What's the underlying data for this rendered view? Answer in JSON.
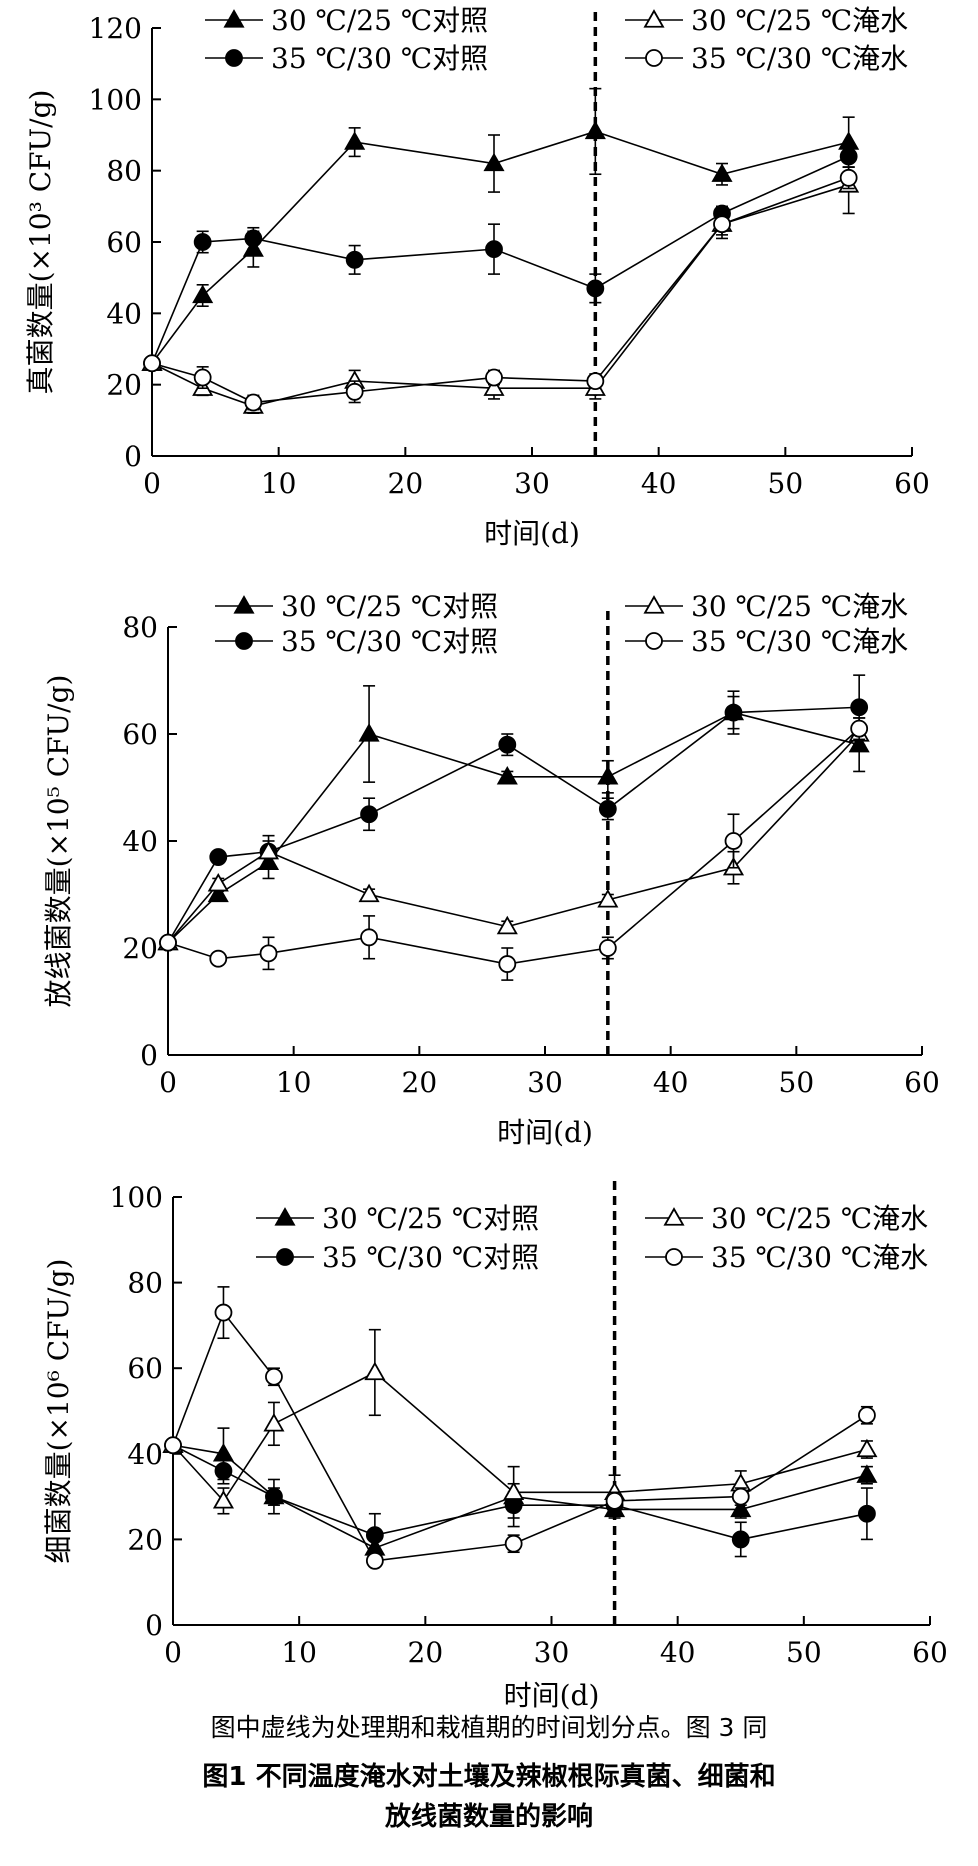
{
  "chart_data": [
    {
      "type": "line",
      "title": "",
      "xlabel": "时间(d)",
      "ylabel": "真菌数量(×10³ CFU/g)",
      "xlim": [
        0,
        60
      ],
      "ylim": [
        0,
        120
      ],
      "xticks": [
        0,
        10,
        20,
        30,
        40,
        50,
        60
      ],
      "yticks": [
        0,
        20,
        40,
        60,
        80,
        100,
        120
      ],
      "divider_x": 35,
      "x": [
        0,
        4,
        8,
        16,
        27,
        35,
        45,
        55
      ],
      "series": [
        {
          "name": "30 ℃/25 ℃对照",
          "marker": "triangle-filled",
          "values": [
            26,
            45,
            58,
            88,
            82,
            91,
            79,
            88
          ],
          "errors": [
            1,
            3,
            5,
            4,
            8,
            12,
            3,
            7
          ]
        },
        {
          "name": "35 ℃/30 ℃对照",
          "marker": "circle-filled",
          "values": [
            26,
            60,
            61,
            55,
            58,
            47,
            68,
            84
          ],
          "errors": [
            1,
            3,
            3,
            4,
            7,
            4,
            2,
            3
          ]
        },
        {
          "name": "30 ℃/25 ℃淹水",
          "marker": "triangle-open",
          "values": [
            26,
            19,
            14,
            21,
            19,
            19,
            65,
            76
          ],
          "errors": [
            1,
            2,
            2,
            3,
            3,
            3,
            4,
            8
          ]
        },
        {
          "name": "35 ℃/30 ℃淹水",
          "marker": "circle-open",
          "values": [
            26,
            22,
            15,
            18,
            22,
            21,
            65,
            78
          ],
          "errors": [
            1,
            3,
            2,
            3,
            2,
            2,
            3,
            3
          ]
        }
      ]
    },
    {
      "type": "line",
      "title": "",
      "xlabel": "时间(d)",
      "ylabel": "放线菌数量(×10⁵ CFU/g)",
      "xlim": [
        0,
        60
      ],
      "ylim": [
        0,
        80
      ],
      "xticks": [
        0,
        10,
        20,
        30,
        40,
        50,
        60
      ],
      "yticks": [
        0,
        20,
        40,
        60,
        80
      ],
      "divider_x": 35,
      "x": [
        0,
        4,
        8,
        16,
        27,
        35,
        45,
        55
      ],
      "series": [
        {
          "name": "30 ℃/25 ℃对照",
          "marker": "triangle-filled",
          "values": [
            21,
            30,
            36,
            60,
            52,
            52,
            64,
            58
          ],
          "errors": [
            1,
            1,
            3,
            9,
            1,
            3,
            3,
            5
          ]
        },
        {
          "name": "35 ℃/30 ℃对照",
          "marker": "circle-filled",
          "values": [
            21,
            37,
            38,
            45,
            58,
            46,
            64,
            65
          ],
          "errors": [
            1,
            1,
            2,
            3,
            2,
            2,
            4,
            6
          ]
        },
        {
          "name": "30 ℃/25 ℃淹水",
          "marker": "triangle-open",
          "values": [
            21,
            32,
            38,
            30,
            24,
            29,
            35,
            60
          ],
          "errors": [
            1,
            1,
            3,
            1,
            1,
            1,
            3,
            2
          ]
        },
        {
          "name": "35 ℃/30 ℃淹水",
          "marker": "circle-open",
          "values": [
            21,
            18,
            19,
            22,
            17,
            20,
            40,
            61
          ],
          "errors": [
            1,
            1,
            3,
            4,
            3,
            2,
            5,
            2
          ]
        }
      ]
    },
    {
      "type": "line",
      "title": "",
      "xlabel": "时间(d)",
      "ylabel": "细菌数量(×10⁶ CFU/g)",
      "xlim": [
        0,
        60
      ],
      "ylim": [
        0,
        100
      ],
      "xticks": [
        0,
        10,
        20,
        30,
        40,
        50,
        60
      ],
      "yticks": [
        0,
        20,
        40,
        60,
        80,
        100
      ],
      "divider_x": 35,
      "x": [
        0,
        4,
        8,
        16,
        27,
        35,
        45,
        55
      ],
      "series": [
        {
          "name": "30 ℃/25 ℃对照",
          "marker": "triangle-filled",
          "values": [
            42,
            40,
            30,
            18,
            30,
            27,
            27,
            35
          ],
          "errors": [
            1,
            6,
            2,
            2,
            7,
            2,
            2,
            2
          ]
        },
        {
          "name": "35 ℃/30 ℃对照",
          "marker": "circle-filled",
          "values": [
            42,
            36,
            30,
            21,
            28,
            28,
            20,
            26
          ],
          "errors": [
            1,
            3,
            4,
            5,
            3,
            2,
            4,
            6
          ]
        },
        {
          "name": "30 ℃/25 ℃淹水",
          "marker": "triangle-open",
          "values": [
            42,
            29,
            47,
            59,
            31,
            31,
            33,
            41
          ],
          "errors": [
            1,
            3,
            5,
            10,
            2,
            4,
            3,
            2
          ]
        },
        {
          "name": "35 ℃/30 ℃淹水",
          "marker": "circle-open",
          "values": [
            42,
            73,
            58,
            15,
            19,
            29,
            30,
            49
          ],
          "errors": [
            1,
            6,
            2,
            1,
            2,
            2,
            2,
            2
          ]
        }
      ]
    }
  ],
  "figure": {
    "note": "图中虚线为处理期和栽植期的时间划分点。图 3 同",
    "caption_line1": "图1    不同温度淹水对土壤及辣椒根际真菌、细菌和",
    "caption_line2": "放线菌数量的影响"
  }
}
